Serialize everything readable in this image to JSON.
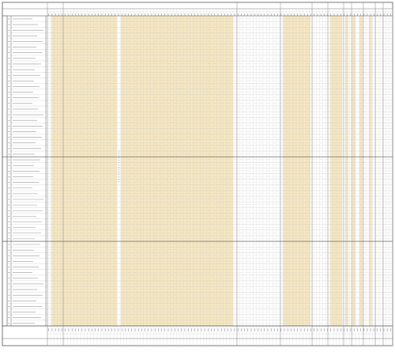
{
  "document": {
    "header_title": "",
    "group_headers": [
      "",
      "",
      "",
      "",
      ""
    ],
    "footer_labels": [
      "",
      "",
      "",
      "",
      ""
    ],
    "center_note": ""
  },
  "sections": [
    {
      "label": "",
      "rows": 25
    },
    {
      "label": "",
      "rows": 15
    },
    {
      "label": "",
      "rows": 15
    }
  ],
  "colors": {
    "highlight": "#f6e7c1",
    "grid": "#c9c9c9",
    "frame": "#555555",
    "background": "#ffffff"
  }
}
